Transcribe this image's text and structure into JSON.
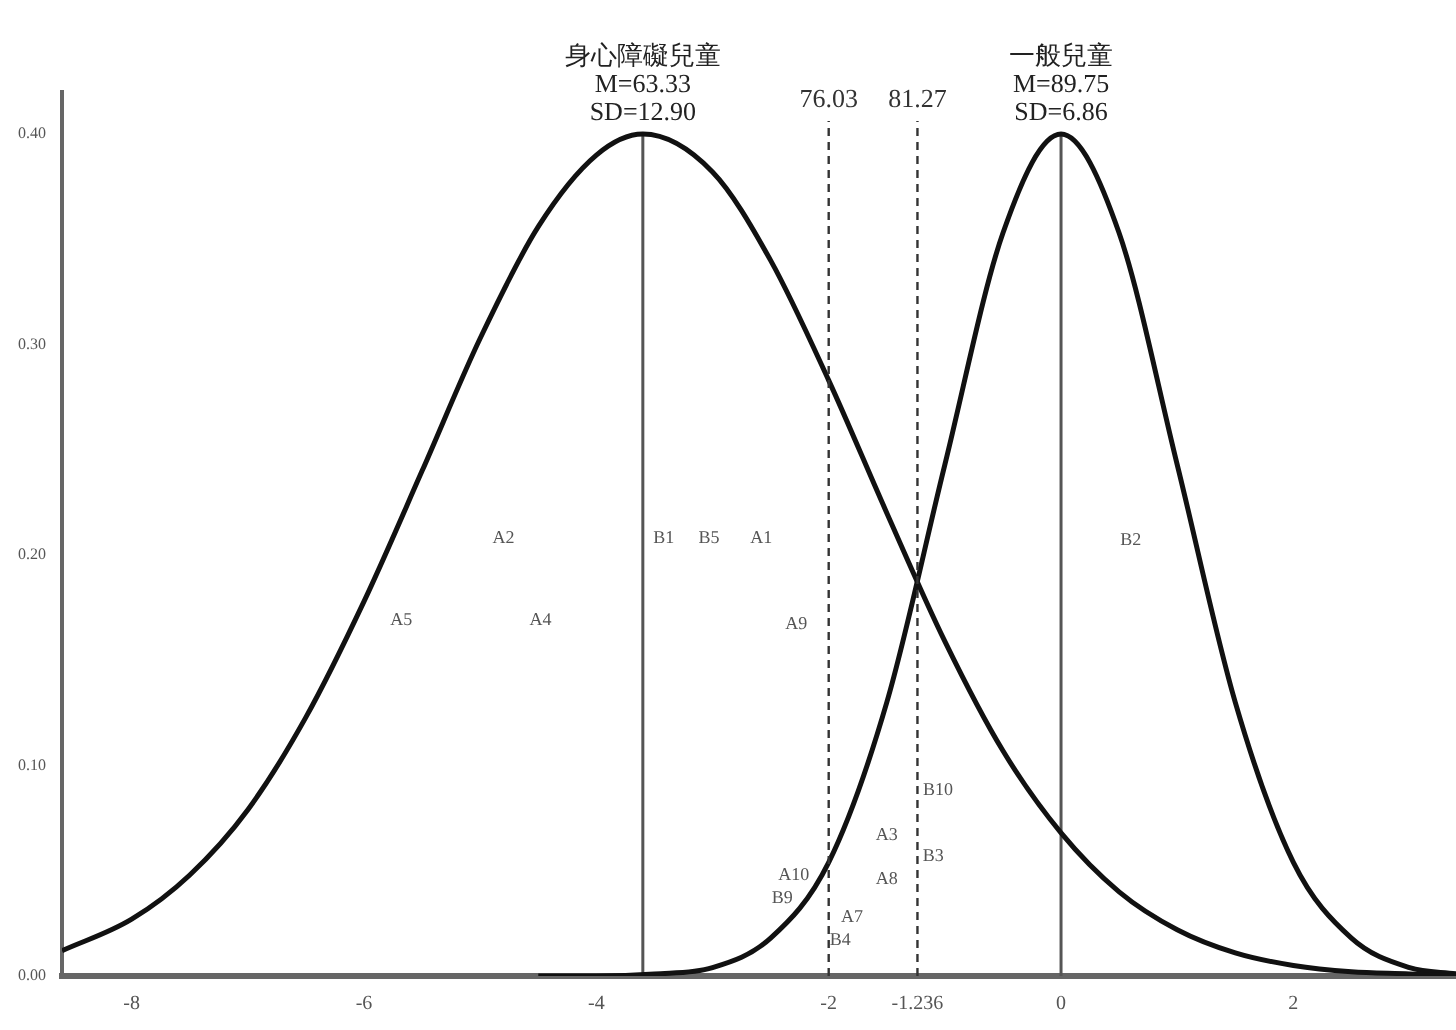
{
  "chart_data": {
    "type": "line",
    "marker": "none",
    "grid": false,
    "legend": false,
    "xlim": [
      -8.6,
      3.4
    ],
    "ylim": [
      0,
      0.42
    ],
    "xticks": [
      -8,
      -6,
      -4,
      -2,
      {
        "value": -1.236,
        "label": "-1.236"
      },
      0,
      2
    ],
    "yticks": [
      {
        "value": 0,
        "label": "0.00"
      },
      {
        "value": 0.1,
        "label": "0.10"
      },
      {
        "value": 0.2,
        "label": "0.20"
      },
      {
        "value": 0.3,
        "label": "0.30"
      },
      {
        "value": 0.4,
        "label": "0.40"
      }
    ],
    "series": [
      {
        "color": "#111111",
        "x": [
          -8.6,
          -8,
          -7.5,
          -7,
          -6.5,
          -6,
          -5.5,
          -5,
          -4.5,
          -4,
          -3.6,
          -3,
          -2.5,
          -2,
          -1.5,
          -1,
          -0.5,
          0,
          0.5,
          1,
          1.5,
          2,
          2.5,
          3,
          3.4
        ],
        "values": [
          0.012,
          0.027,
          0.048,
          0.079,
          0.123,
          0.178,
          0.24,
          0.303,
          0.356,
          0.39,
          0.4,
          0.382,
          0.34,
          0.283,
          0.22,
          0.159,
          0.107,
          0.068,
          0.04,
          0.022,
          0.011,
          0.005,
          0.002,
          0.001,
          0
        ]
      },
      {
        "color": "#111111",
        "x": [
          -4.5,
          -4,
          -3.5,
          -3,
          -2.5,
          -2,
          -1.5,
          -1,
          -0.5,
          0,
          0.5,
          1,
          1.5,
          2,
          2.5,
          3,
          3.4
        ],
        "values": [
          0,
          0,
          0.001,
          0.004,
          0.018,
          0.054,
          0.13,
          0.243,
          0.353,
          0.4,
          0.353,
          0.243,
          0.13,
          0.054,
          0.018,
          0.004,
          0.001
        ]
      },
      {
        "color": "#555555",
        "x": [
          -3.6,
          -3.6
        ],
        "values": [
          0,
          0.4
        ]
      },
      {
        "color": "#555555",
        "x": [
          0,
          0
        ],
        "values": [
          0,
          0.4
        ]
      }
    ],
    "ref_lines": [
      {
        "axis": "x",
        "value": -2,
        "line_style": "dashed",
        "color": "#333333"
      },
      {
        "axis": "x",
        "value": -1.236,
        "line_style": "dashed",
        "color": "#333333"
      }
    ],
    "annotations": [
      {
        "text": "身心障礙兒童\nM=63.33\nSD=12.90",
        "x": -3.6,
        "y": 0.4
      },
      {
        "text": "一般兒童\nM=89.75\nSD=6.86",
        "x": 0,
        "y": 0.4
      },
      "A2",
      "B1",
      "B5",
      "A1",
      "B2",
      "A5",
      "A4",
      "A9",
      "B10",
      "A3",
      "B3",
      "A8",
      "A10",
      "B9",
      "A7",
      "B4",
      {
        "text": "76.03",
        "x": -2,
        "y": 0.41
      },
      {
        "text": "81.27",
        "x": -1.236,
        "y": 0.41
      }
    ]
  }
}
